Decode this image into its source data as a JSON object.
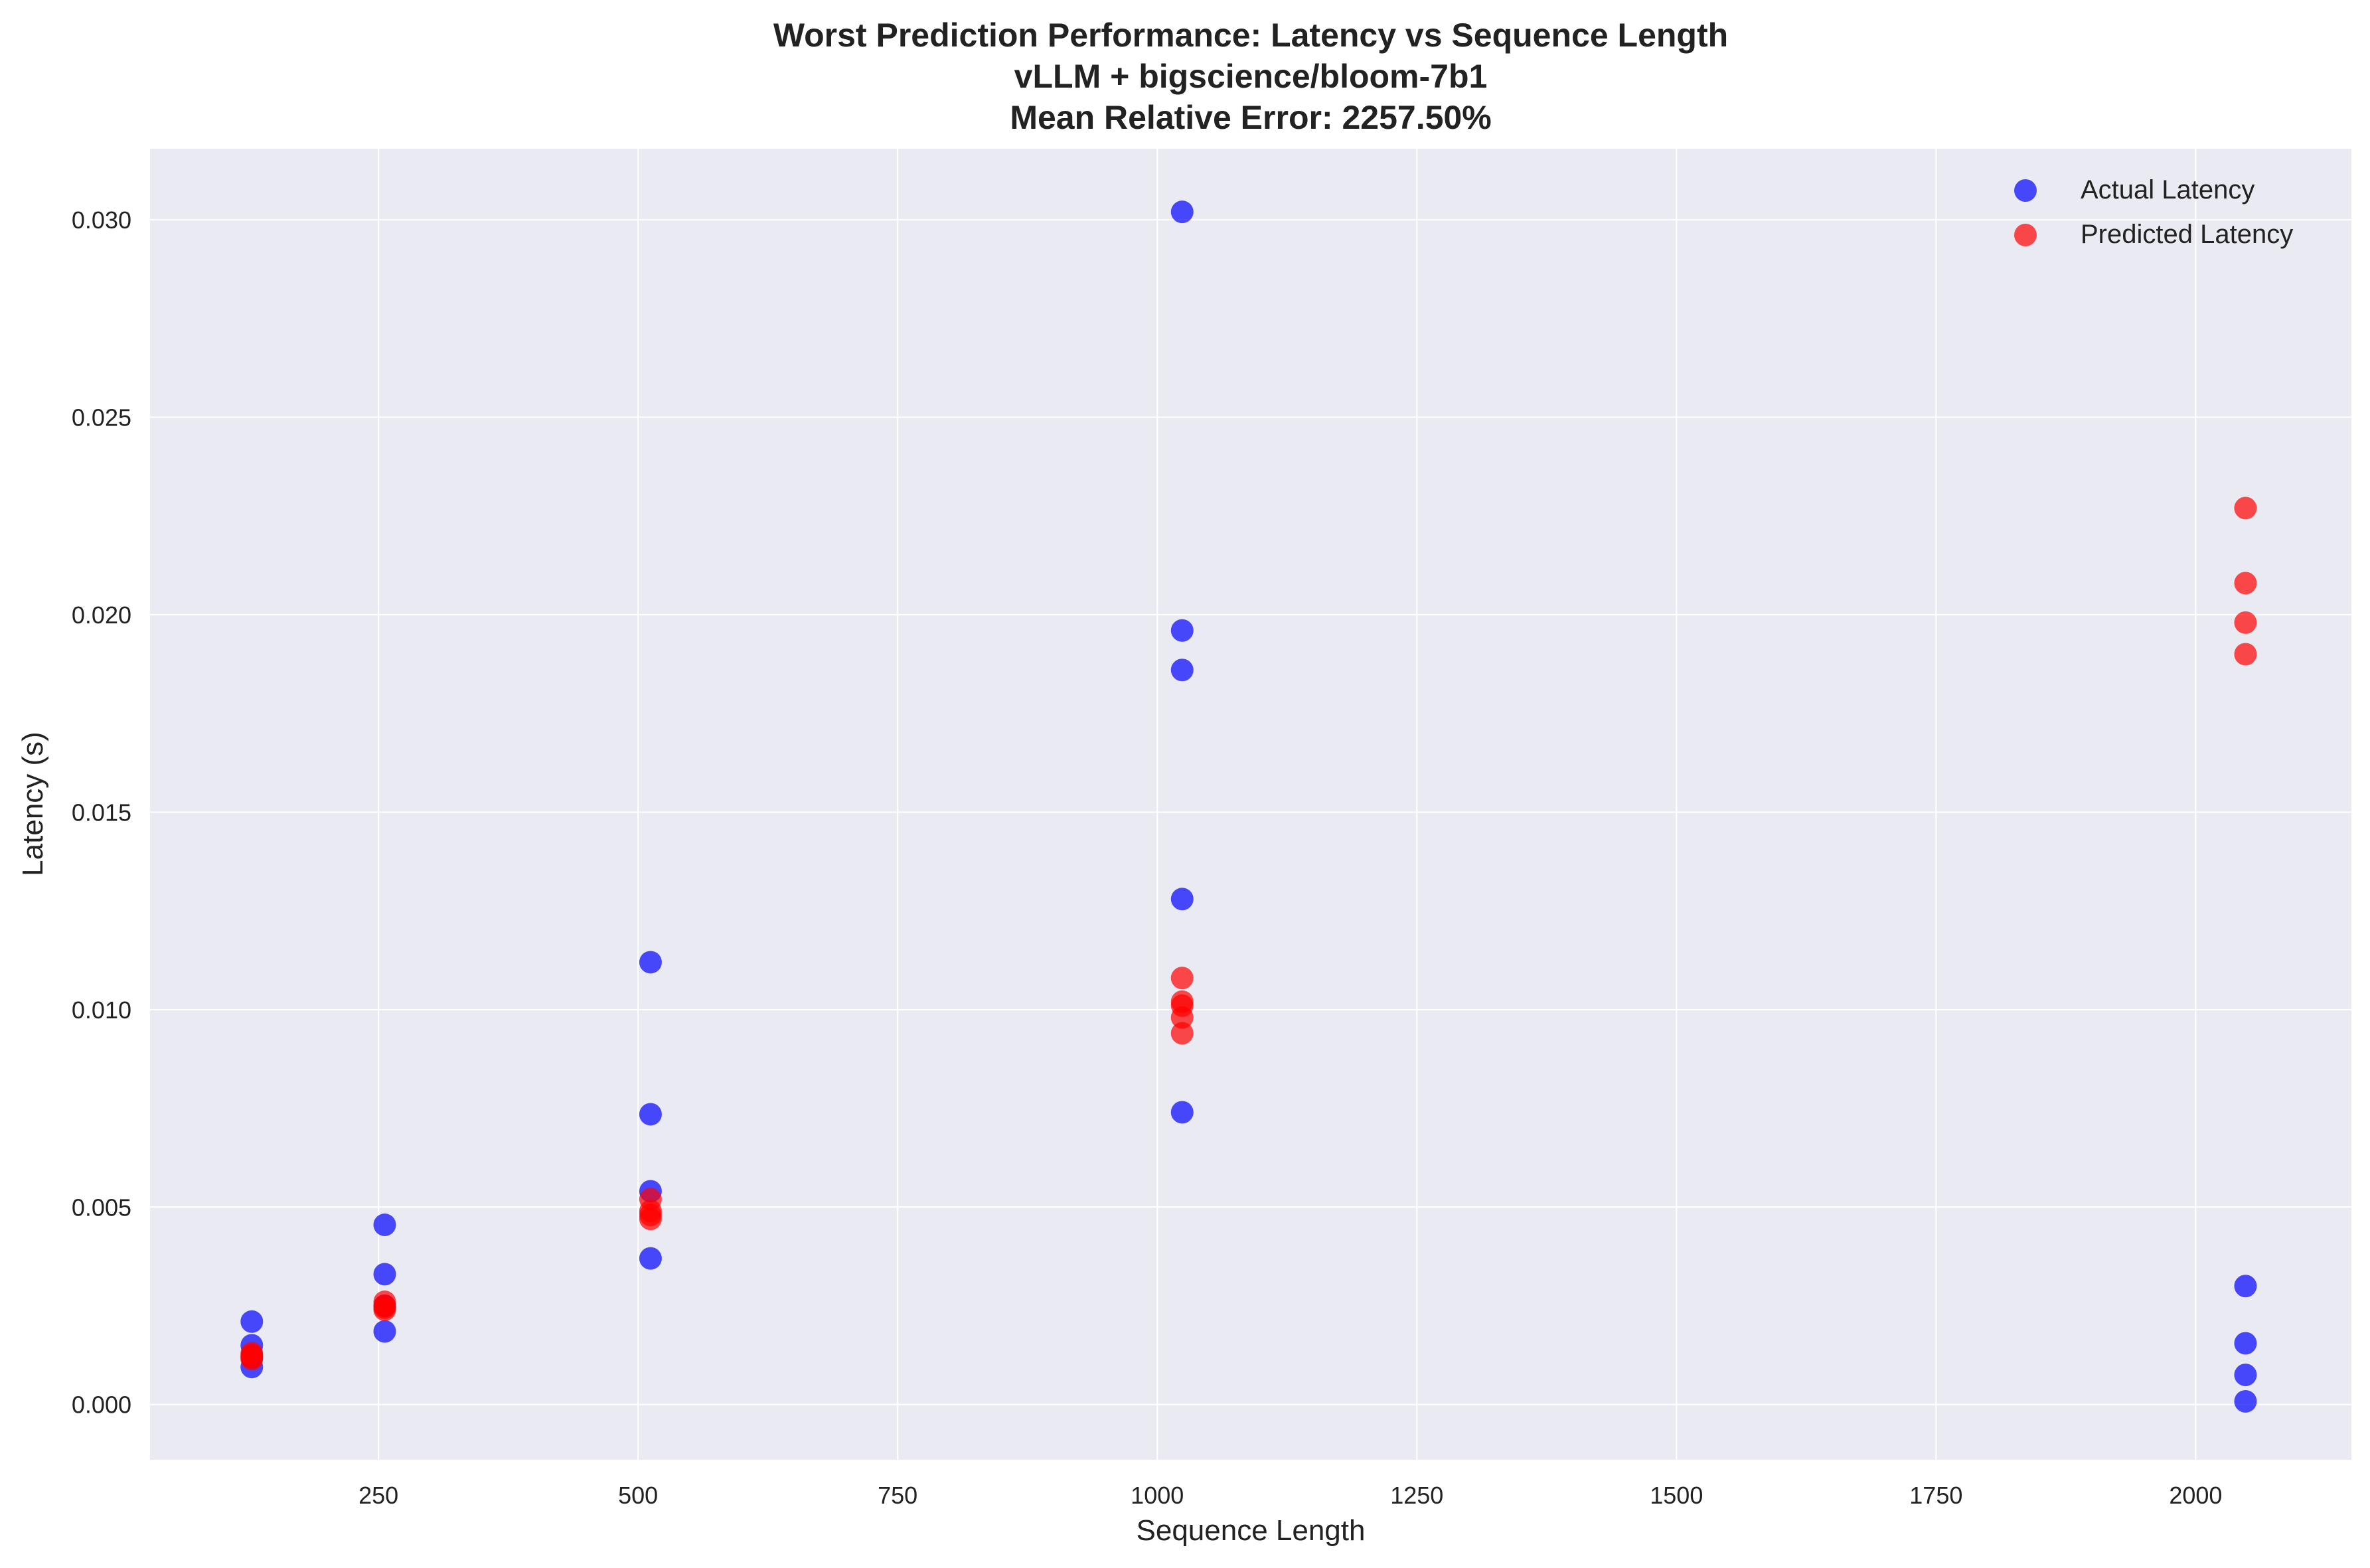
{
  "chart_data": {
    "type": "scatter",
    "title": "Worst Prediction Performance: Latency vs Sequence Length",
    "subtitle": "vLLM + bigscience/bloom-7b1",
    "subtitle2": "Mean Relative Error: 2257.50%",
    "xlabel": "Sequence Length",
    "ylabel": "Latency (s)",
    "xlim": [
      30,
      2150
    ],
    "ylim": [
      -0.0014,
      0.0318
    ],
    "xticks": [
      250,
      500,
      750,
      1000,
      1250,
      1500,
      1750,
      2000
    ],
    "xtick_labels": [
      "250",
      "500",
      "750",
      "1000",
      "1250",
      "1500",
      "1750",
      "2000"
    ],
    "yticks": [
      0.0,
      0.005,
      0.01,
      0.015,
      0.02,
      0.025,
      0.03
    ],
    "ytick_labels": [
      "0.000",
      "0.005",
      "0.010",
      "0.015",
      "0.020",
      "0.025",
      "0.030"
    ],
    "grid": true,
    "legend_position": "top-right",
    "background": "#eaeaf2",
    "series": [
      {
        "name": "Actual Latency",
        "color": "#0000ff",
        "points": [
          {
            "x": 128,
            "y": 0.0021
          },
          {
            "x": 128,
            "y": 0.0015
          },
          {
            "x": 128,
            "y": 0.0012
          },
          {
            "x": 128,
            "y": 0.00095
          },
          {
            "x": 256,
            "y": 0.00455
          },
          {
            "x": 256,
            "y": 0.0033
          },
          {
            "x": 256,
            "y": 0.00185
          },
          {
            "x": 256,
            "y": 0.0025
          },
          {
            "x": 512,
            "y": 0.0112
          },
          {
            "x": 512,
            "y": 0.00735
          },
          {
            "x": 512,
            "y": 0.0054
          },
          {
            "x": 512,
            "y": 0.0037
          },
          {
            "x": 1024,
            "y": 0.0302
          },
          {
            "x": 1024,
            "y": 0.0196
          },
          {
            "x": 1024,
            "y": 0.0186
          },
          {
            "x": 1024,
            "y": 0.0128
          },
          {
            "x": 1024,
            "y": 0.0074
          },
          {
            "x": 2048,
            "y": 0.003
          },
          {
            "x": 2048,
            "y": 0.00155
          },
          {
            "x": 2048,
            "y": 0.00075
          },
          {
            "x": 2048,
            "y": 8e-05
          }
        ]
      },
      {
        "name": "Predicted Latency",
        "color": "#ff0000",
        "points": [
          {
            "x": 128,
            "y": 0.0013
          },
          {
            "x": 128,
            "y": 0.00125
          },
          {
            "x": 128,
            "y": 0.0012
          },
          {
            "x": 128,
            "y": 0.00115
          },
          {
            "x": 256,
            "y": 0.0026
          },
          {
            "x": 256,
            "y": 0.0025
          },
          {
            "x": 256,
            "y": 0.00245
          },
          {
            "x": 256,
            "y": 0.0024
          },
          {
            "x": 512,
            "y": 0.0052
          },
          {
            "x": 512,
            "y": 0.0049
          },
          {
            "x": 512,
            "y": 0.0048
          },
          {
            "x": 512,
            "y": 0.0047
          },
          {
            "x": 1024,
            "y": 0.0108
          },
          {
            "x": 1024,
            "y": 0.0102
          },
          {
            "x": 1024,
            "y": 0.0101
          },
          {
            "x": 1024,
            "y": 0.0098
          },
          {
            "x": 1024,
            "y": 0.0094
          },
          {
            "x": 2048,
            "y": 0.0227
          },
          {
            "x": 2048,
            "y": 0.0208
          },
          {
            "x": 2048,
            "y": 0.0198
          },
          {
            "x": 2048,
            "y": 0.019
          }
        ]
      }
    ]
  }
}
